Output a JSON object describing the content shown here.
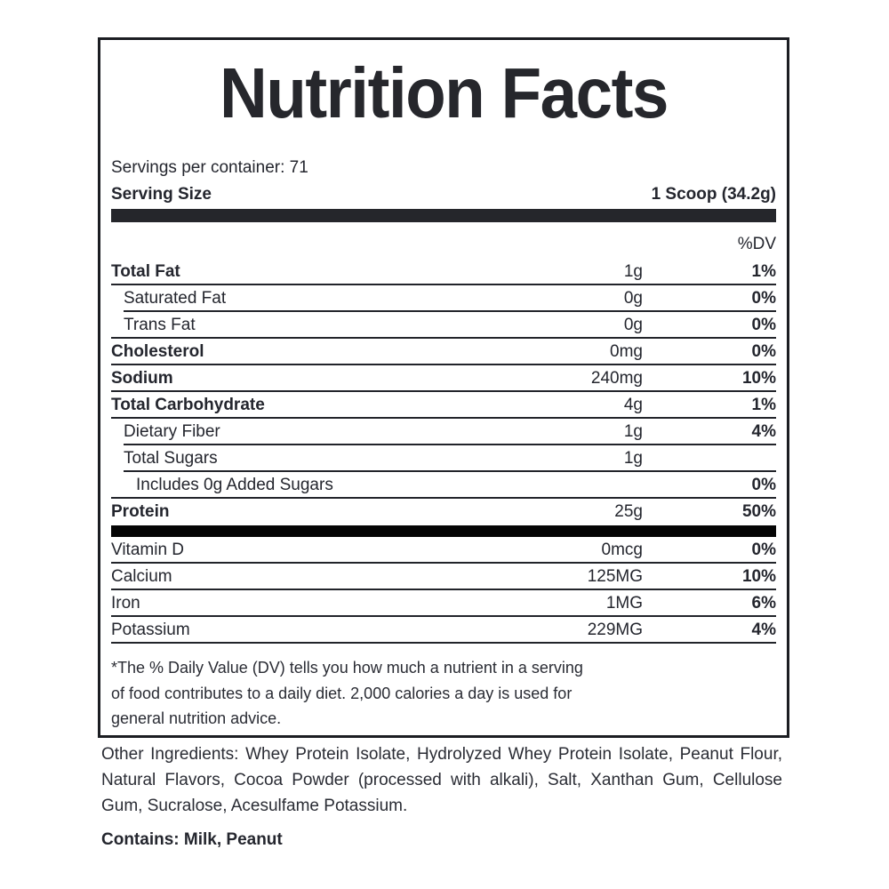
{
  "label": {
    "title": "Nutrition Facts",
    "servings_per_container": "Servings per container: 71",
    "serving_size_label": "Serving Size",
    "serving_size_value": "1 Scoop (34.2g)",
    "dv_header": "%DV",
    "rows": [
      {
        "name": "Total Fat",
        "amount": "1g",
        "dv": "1%"
      },
      {
        "name": "Saturated Fat",
        "amount": "0g",
        "dv": "0%"
      },
      {
        "name": "Trans Fat",
        "amount": "0g",
        "dv": "0%"
      },
      {
        "name": "Cholesterol",
        "amount": "0mg",
        "dv": "0%"
      },
      {
        "name": "Sodium",
        "amount": "240mg",
        "dv": "10%"
      },
      {
        "name": "Total Carbohydrate",
        "amount": "4g",
        "dv": "1%"
      },
      {
        "name": "Dietary Fiber",
        "amount": "1g",
        "dv": "4%"
      },
      {
        "name": "Total Sugars",
        "amount": "1g",
        "dv": ""
      },
      {
        "name": "Includes 0g Added Sugars",
        "amount": "",
        "dv": "0%"
      },
      {
        "name": "Protein",
        "amount": "25g",
        "dv": "50%"
      }
    ],
    "micronutrients": [
      {
        "name": "Vitamin D",
        "amount": "0mcg",
        "dv": "0%"
      },
      {
        "name": "Calcium",
        "amount": "125MG",
        "dv": "10%"
      },
      {
        "name": "Iron",
        "amount": "1MG",
        "dv": "6%"
      },
      {
        "name": "Potassium",
        "amount": "229MG",
        "dv": "4%"
      }
    ],
    "footnote": [
      "*The % Daily Value (DV) tells you how much a nutrient in a serving",
      "of food contributes to a daily diet. 2,000 calories a day is used for",
      "general nutrition advice."
    ],
    "other_ingredients": "Other Ingredients: Whey Protein Isolate, Hydrolyzed Whey Protein Isolate, Peanut Flour, Natural Flavors, Cocoa Powder (processed with alkali), Salt, Xanthan Gum, Cellulose Gum, Sucralose, Acesulfame Potassium.",
    "contains": "Contains: Milk, Peanut"
  },
  "colors": {
    "text": "#24262e",
    "thick_bar_top": "#25262b",
    "thick_bar_middle": "#050505",
    "panel_border": "#1b1d22",
    "hairline": "#22242a",
    "background": "#ffffff"
  }
}
